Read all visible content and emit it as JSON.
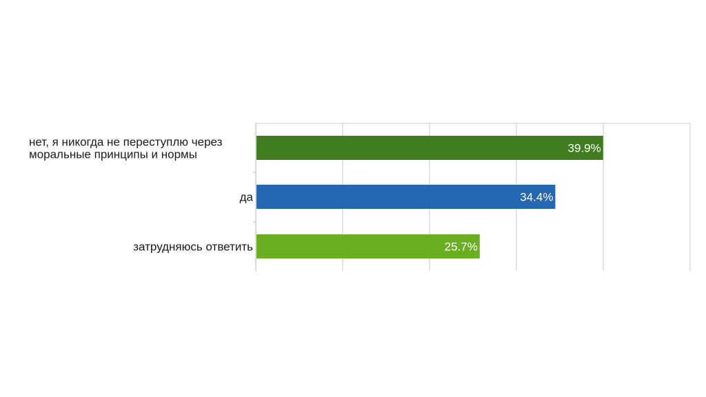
{
  "chart_data": {
    "type": "bar",
    "orientation": "horizontal",
    "categories": [
      [
        "нет, я никогда не переступлю через",
        "моральные принципы и нормы"
      ],
      [
        "да"
      ],
      [
        "затрудняюсь ответить"
      ]
    ],
    "values": [
      39.9,
      34.4,
      25.7
    ],
    "value_labels": [
      "39.9%",
      "34.4%",
      "25.7%"
    ],
    "bar_colors": [
      "#3f7d1f",
      "#2468b2",
      "#6aaf1f"
    ],
    "xlim": [
      0,
      50
    ],
    "grid": true,
    "x_tick_labels_shown": false,
    "title": "",
    "xlabel": "",
    "ylabel": ""
  }
}
